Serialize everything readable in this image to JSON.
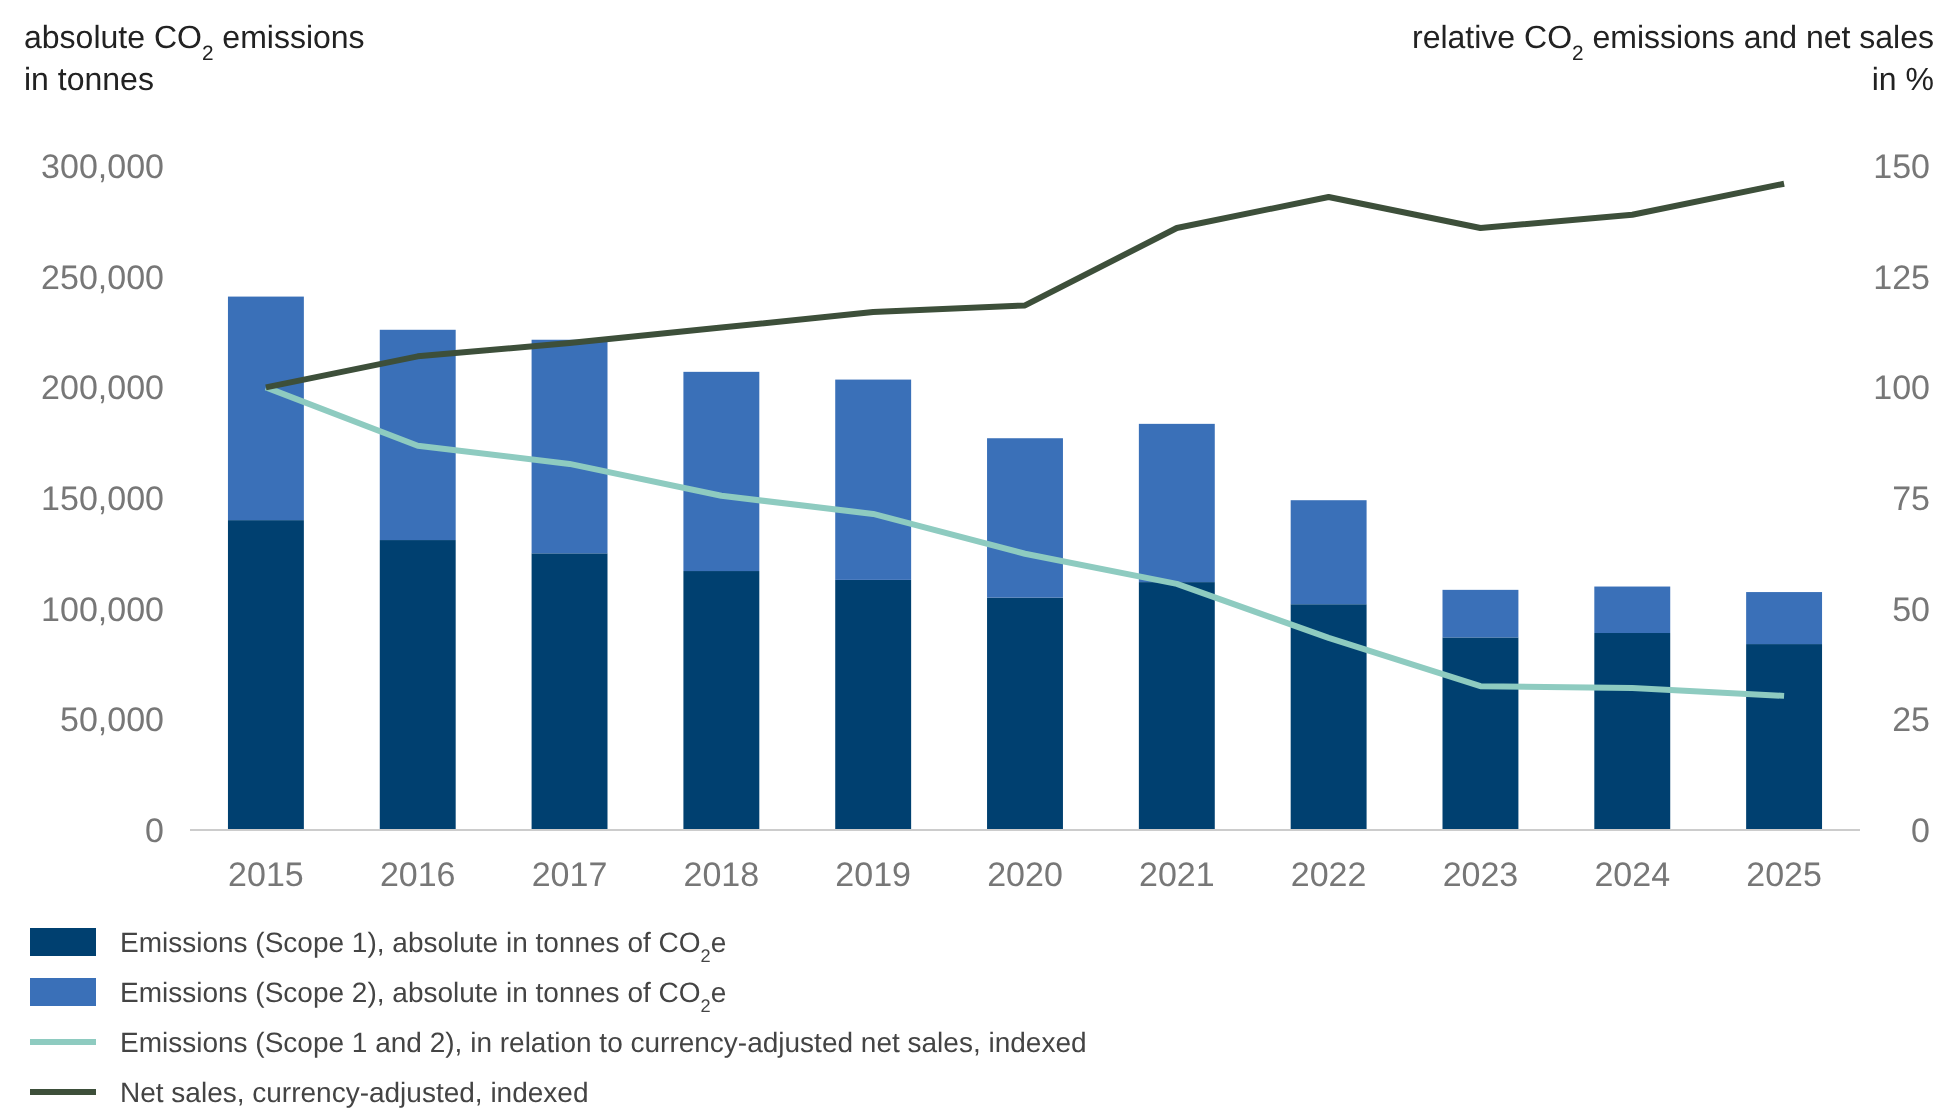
{
  "chart_data": {
    "type": "bar",
    "stacked": true,
    "categories": [
      "2015",
      "2016",
      "2017",
      "2018",
      "2019",
      "2020",
      "2021",
      "2022",
      "2023",
      "2024",
      "2025"
    ],
    "ylabel": "absolute CO$_{2}$ emissions\nin tonnes",
    "y2label": "relative CO$_{2}$ emissions and net sales\nin %",
    "ylim": [
      0,
      300000
    ],
    "yticks": [
      0,
      {
        "value": 50000,
        "label": "50,000"
      },
      {
        "value": 100000,
        "label": "100,000"
      },
      {
        "value": 150000,
        "label": "150,000"
      },
      {
        "value": 200000,
        "label": "200,000"
      },
      {
        "value": 250000,
        "label": "250,000"
      },
      {
        "value": 300000,
        "label": "300,000"
      }
    ],
    "y2lim": [
      0,
      150
    ],
    "y2ticks": [
      0,
      25,
      50,
      75,
      100,
      125,
      150
    ],
    "grid": false,
    "legend": "bottom",
    "marker": "none",
    "series": [
      {
        "name": "Emissions (Scope 1), absolute in tonnes of CO$_{2}$e",
        "color": "#004070",
        "values": [
          140000,
          131000,
          125000,
          117000,
          113000,
          105000,
          112000,
          102000,
          87000,
          89000,
          84000
        ]
      },
      {
        "name": "Emissions (Scope 2), absolute in tonnes of CO$_{2}$e",
        "color": "#3a70b8",
        "values": [
          101000,
          95000,
          96500,
          90000,
          90500,
          72000,
          71500,
          47000,
          21500,
          21000,
          23500
        ]
      },
      {
        "name": "Emissions (Scope 1 and 2), in relation to currency-adjusted net sales, indexed",
        "type": "line",
        "axis": "y2",
        "color": "#8ecbc0",
        "values": [
          100,
          86.8,
          82.7,
          75.5,
          71.4,
          62.4,
          55.6,
          43.4,
          32.5,
          32.1,
          30.3
        ]
      },
      {
        "name": "Net sales, currency-adjusted, indexed",
        "type": "line",
        "axis": "y2",
        "color": "#3d4f3a",
        "values": [
          100,
          107,
          110,
          113.5,
          117,
          118.5,
          136,
          143,
          136,
          139,
          146
        ]
      }
    ]
  }
}
